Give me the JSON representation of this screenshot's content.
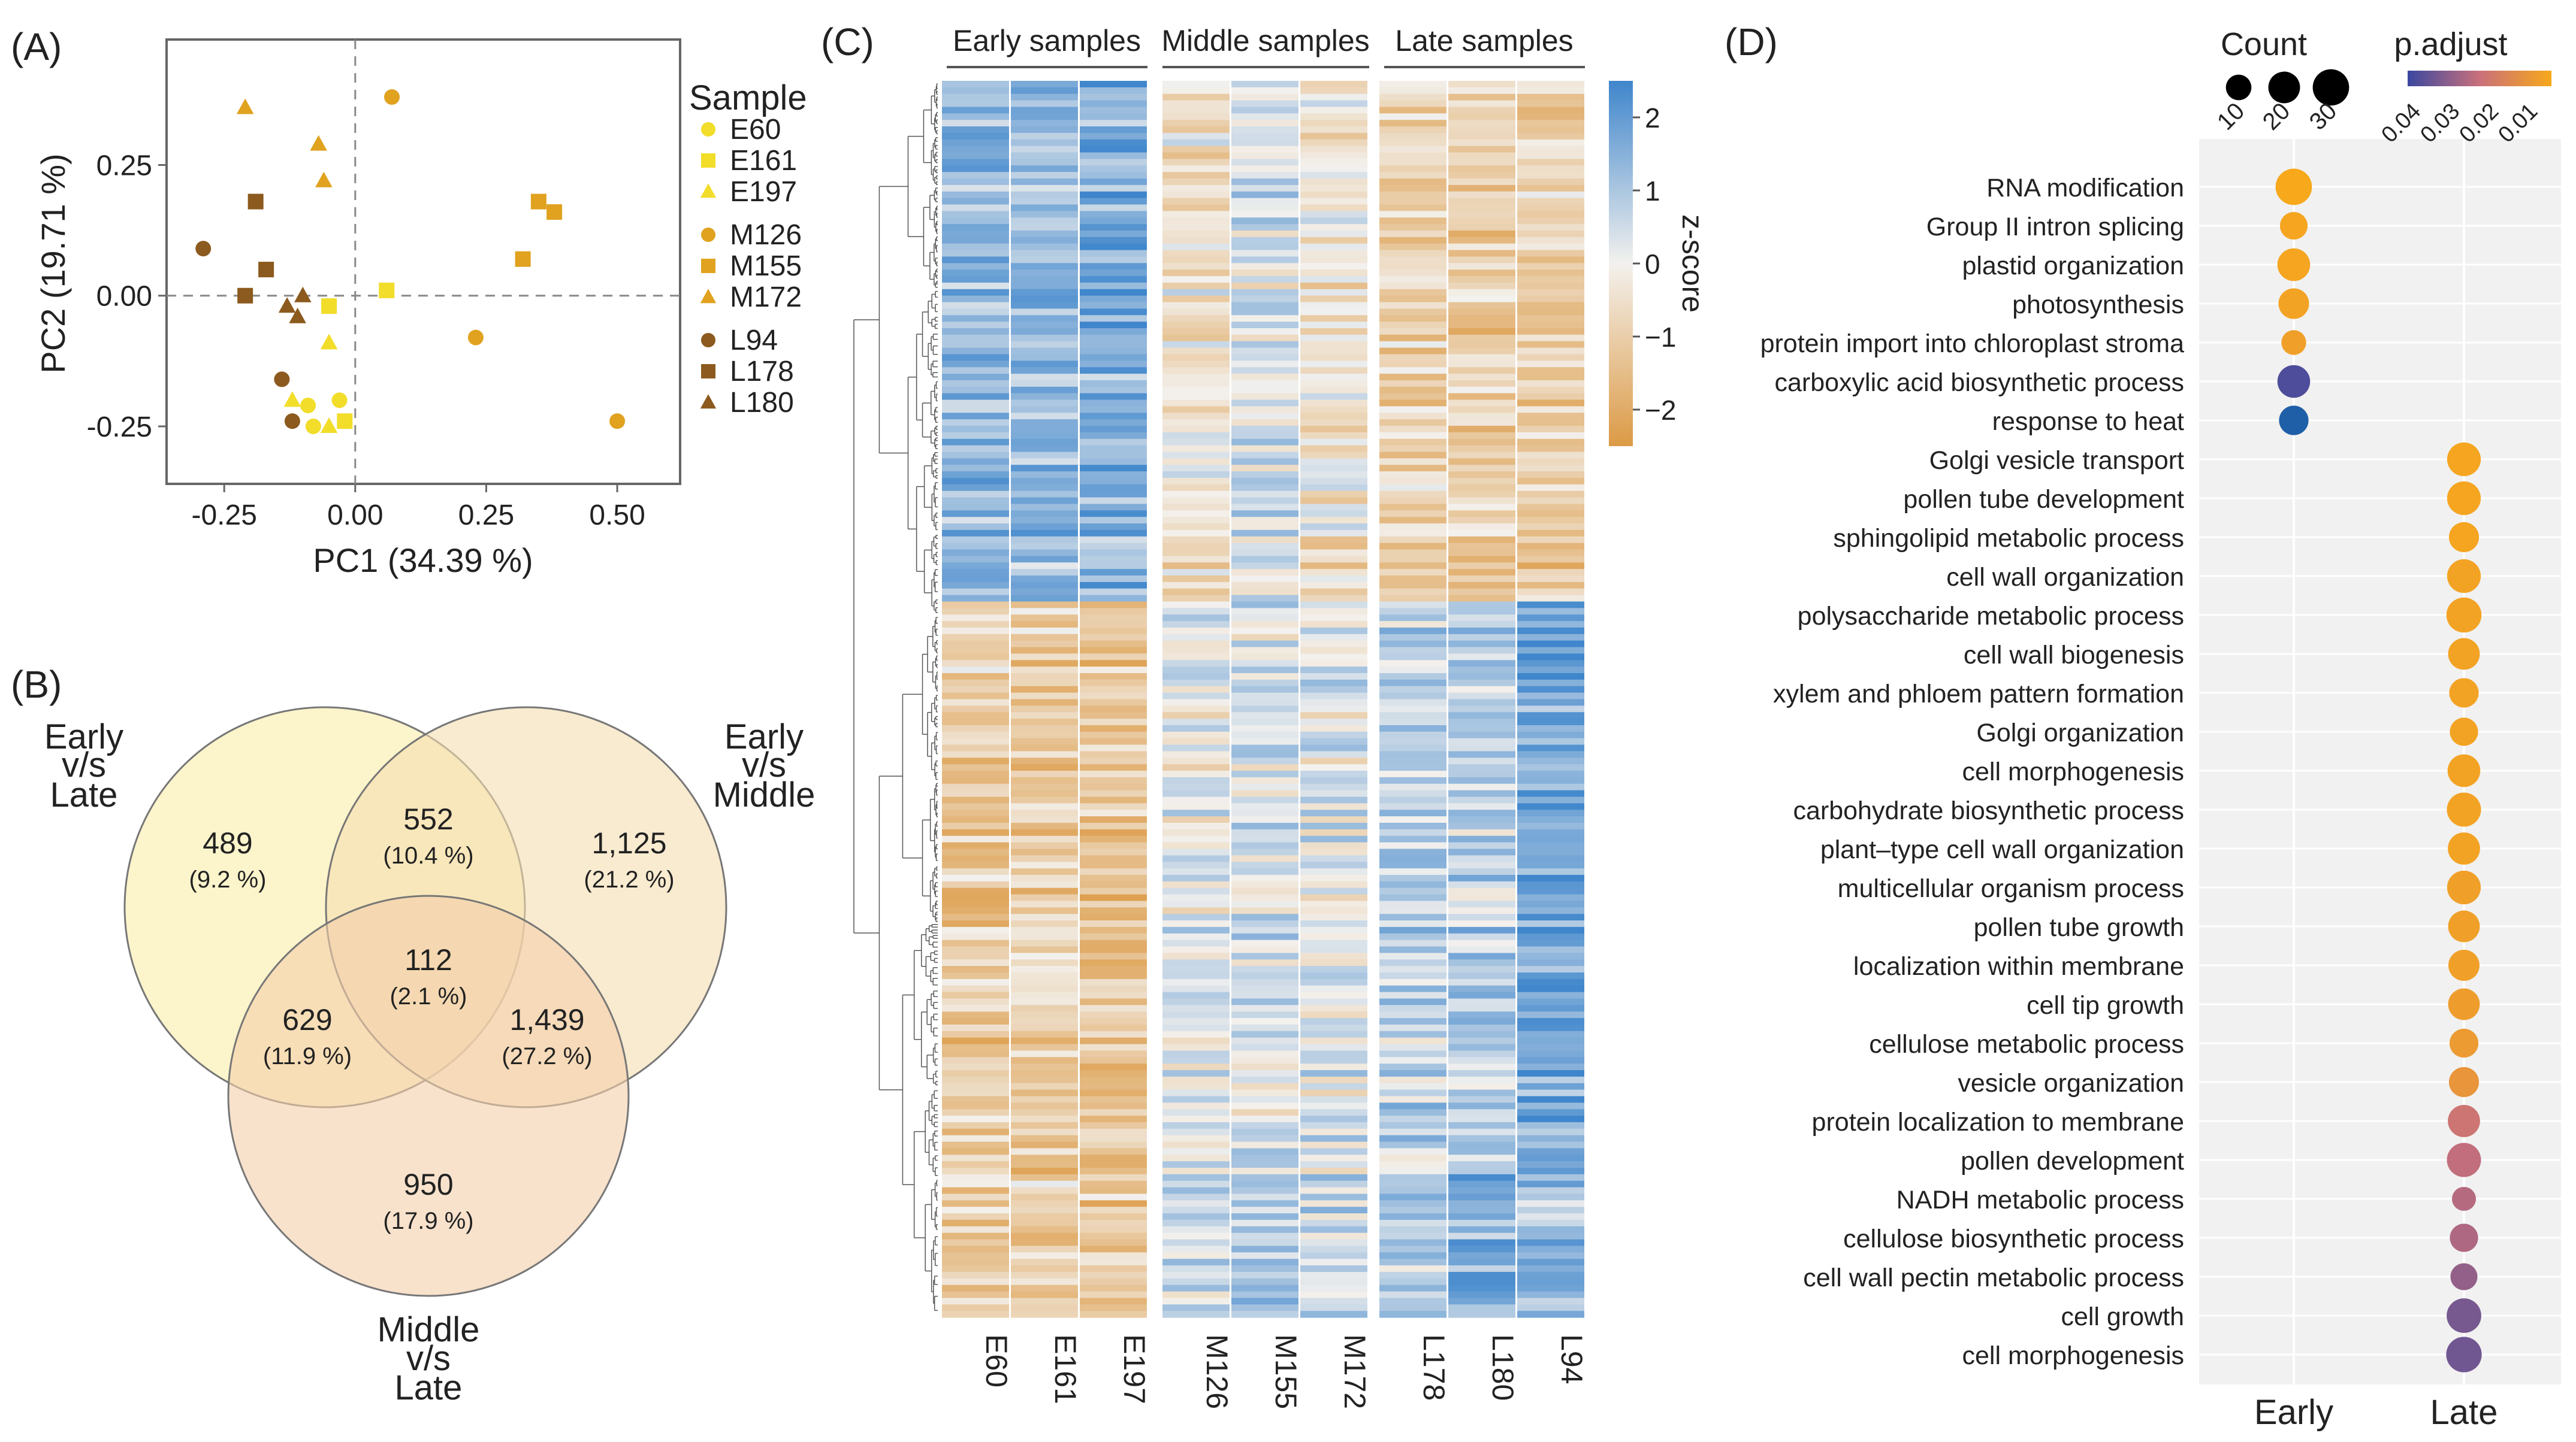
{
  "colors": {
    "gold": "#f5c400",
    "yellow": "#f2dd2a",
    "orange": "#e0a21f",
    "brown": "#8c5a1e",
    "frame": "#666666",
    "heat_blue": "#4d8fd1",
    "heat_orange": "#e3a45a",
    "heat_mid": "#f3f1ee",
    "venn_a": "#fbf2c2",
    "venn_b": "#f5ddb0",
    "venn_c": "#f3ceaa",
    "dot_low": "#3a47a0",
    "dot_high": "#f7a81b"
  },
  "panels": {
    "a": "(A)",
    "b": "(B)",
    "c": "(C)",
    "d": "(D)"
  },
  "chart_data": [
    {
      "type": "scatter",
      "id": "pca",
      "xlabel": "PC1 (34.39 %)",
      "ylabel": "PC2 (19.71 %)",
      "xlim": [
        -0.36,
        0.62
      ],
      "ylim": [
        -0.36,
        0.49
      ],
      "xticks": [
        "-0.25",
        "0.00",
        "0.25",
        "0.50"
      ],
      "xtick_values": [
        -0.25,
        0.0,
        0.25,
        0.5
      ],
      "yticks": [
        "0.25",
        "0.00",
        "-0.25"
      ],
      "ytick_values": [
        0.25,
        0.0,
        -0.25
      ],
      "legend_title": "Sample",
      "legend": [
        {
          "name": "E60",
          "shape": "circle",
          "color": "#f2dd2a"
        },
        {
          "name": "E161",
          "shape": "square",
          "color": "#f2dd2a"
        },
        {
          "name": "E197",
          "shape": "triangle",
          "color": "#f2dd2a"
        },
        {
          "name": "M126",
          "shape": "circle",
          "color": "#e0a21f"
        },
        {
          "name": "M155",
          "shape": "square",
          "color": "#e0a21f"
        },
        {
          "name": "M172",
          "shape": "triangle",
          "color": "#e0a21f"
        },
        {
          "name": "L94",
          "shape": "circle",
          "color": "#8c5a1e"
        },
        {
          "name": "L178",
          "shape": "square",
          "color": "#8c5a1e"
        },
        {
          "name": "L180",
          "shape": "triangle",
          "color": "#8c5a1e"
        }
      ],
      "points": [
        {
          "s": "E60",
          "x": -0.08,
          "y": -0.25
        },
        {
          "s": "E60",
          "x": -0.03,
          "y": -0.2
        },
        {
          "s": "E60",
          "x": -0.09,
          "y": -0.21
        },
        {
          "s": "E161",
          "x": 0.06,
          "y": 0.01
        },
        {
          "s": "E161",
          "x": -0.05,
          "y": -0.02
        },
        {
          "s": "E161",
          "x": -0.02,
          "y": -0.24
        },
        {
          "s": "E197",
          "x": -0.12,
          "y": -0.2
        },
        {
          "s": "E197",
          "x": -0.05,
          "y": -0.09
        },
        {
          "s": "E197",
          "x": -0.05,
          "y": -0.25
        },
        {
          "s": "M126",
          "x": 0.07,
          "y": 0.38
        },
        {
          "s": "M126",
          "x": 0.23,
          "y": -0.08
        },
        {
          "s": "M126",
          "x": 0.5,
          "y": -0.24
        },
        {
          "s": "M155",
          "x": 0.35,
          "y": 0.18
        },
        {
          "s": "M155",
          "x": 0.38,
          "y": 0.16
        },
        {
          "s": "M155",
          "x": 0.32,
          "y": 0.07
        },
        {
          "s": "M172",
          "x": -0.21,
          "y": 0.36
        },
        {
          "s": "M172",
          "x": -0.07,
          "y": 0.29
        },
        {
          "s": "M172",
          "x": -0.06,
          "y": 0.22
        },
        {
          "s": "L94",
          "x": -0.29,
          "y": 0.09
        },
        {
          "s": "L94",
          "x": -0.14,
          "y": -0.16
        },
        {
          "s": "L94",
          "x": -0.12,
          "y": -0.24
        },
        {
          "s": "L178",
          "x": -0.19,
          "y": 0.18
        },
        {
          "s": "L178",
          "x": -0.17,
          "y": 0.05
        },
        {
          "s": "L178",
          "x": -0.21,
          "y": 0.0
        },
        {
          "s": "L180",
          "x": -0.13,
          "y": -0.02
        },
        {
          "s": "L180",
          "x": -0.1,
          "y": 0.0
        },
        {
          "s": "L180",
          "x": -0.11,
          "y": -0.04
        }
      ]
    },
    {
      "type": "venn",
      "id": "venn",
      "sets": [
        {
          "label_lines": [
            "Early",
            "v/s",
            "Late"
          ]
        },
        {
          "label_lines": [
            "Early",
            "v/s",
            "Middle"
          ]
        },
        {
          "label_lines": [
            "Middle",
            "v/s",
            "Late"
          ]
        }
      ],
      "regions": [
        {
          "count": "489",
          "pct": "(9.2 %)"
        },
        {
          "count": "552",
          "pct": "(10.4 %)"
        },
        {
          "count": "1,125",
          "pct": "(21.2 %)"
        },
        {
          "count": "112",
          "pct": "(2.1 %)"
        },
        {
          "count": "629",
          "pct": "(11.9 %)"
        },
        {
          "count": "1,439",
          "pct": "(27.2 %)"
        },
        {
          "count": "950",
          "pct": "(17.9 %)"
        }
      ]
    },
    {
      "type": "heatmap",
      "id": "heatmap",
      "groups": [
        "Early samples",
        "Middle samples",
        "Late samples"
      ],
      "columns": [
        "E60",
        "E161",
        "E197",
        "M126",
        "M155",
        "M172",
        "L178",
        "L180",
        "L94"
      ],
      "n_rows": 190,
      "colorbar_title": "z-score",
      "colorbar_ticks": [
        "2",
        "1",
        "0",
        "−1",
        "−2"
      ],
      "colorbar_values": [
        2,
        1,
        0,
        -1,
        -2
      ],
      "value_range": [
        -2.5,
        2.5
      ],
      "row_blocks": [
        {
          "row_fraction": [
            0.0,
            0.42
          ],
          "means": [
            1.3,
            1.3,
            1.6,
            -0.4,
            0.3,
            -0.4,
            -0.9,
            -1.0,
            -1.0
          ]
        },
        {
          "row_fraction": [
            0.42,
            0.88
          ],
          "means": [
            -1.0,
            -1.0,
            -1.2,
            0.1,
            0.3,
            0.2,
            0.6,
            0.8,
            1.8
          ]
        },
        {
          "row_fraction": [
            0.88,
            1.0
          ],
          "means": [
            -1.0,
            -1.0,
            -1.1,
            0.6,
            0.9,
            0.6,
            0.8,
            1.5,
            1.3
          ]
        }
      ]
    },
    {
      "type": "dot",
      "id": "enrichment",
      "categories": [
        "Early",
        "Late"
      ],
      "size_legend_title": "Count",
      "size_legend": [
        10,
        20,
        30
      ],
      "color_legend_title": "p.adjust",
      "color_legend_ticks": [
        "0.04",
        "0.03",
        "0.02",
        "0.01"
      ],
      "color_legend_values": [
        0.04,
        0.03,
        0.02,
        0.01
      ],
      "terms": [
        {
          "term": "RNA modification",
          "group": "Early",
          "count": 30,
          "padj": 0.003
        },
        {
          "term": "Group II intron splicing",
          "group": "Early",
          "count": 13,
          "padj": 0.004
        },
        {
          "term": "plastid organization",
          "group": "Early",
          "count": 22,
          "padj": 0.004
        },
        {
          "term": "photosynthesis",
          "group": "Early",
          "count": 18,
          "padj": 0.005
        },
        {
          "term": "protein import into chloroplast stroma",
          "group": "Early",
          "count": 9,
          "padj": 0.006
        },
        {
          "term": "carboxylic acid biosynthetic process",
          "group": "Early",
          "count": 22,
          "padj": 0.042
        },
        {
          "term": "response to heat",
          "group": "Early",
          "count": 16,
          "padj": 0.046
        },
        {
          "term": "Golgi vesicle transport",
          "group": "Late",
          "count": 24,
          "padj": 0.004
        },
        {
          "term": "pollen tube development",
          "group": "Late",
          "count": 24,
          "padj": 0.004
        },
        {
          "term": "sphingolipid metabolic process",
          "group": "Late",
          "count": 17,
          "padj": 0.004
        },
        {
          "term": "cell wall organization",
          "group": "Late",
          "count": 24,
          "padj": 0.005
        },
        {
          "term": "polysaccharide metabolic process",
          "group": "Late",
          "count": 27,
          "padj": 0.005
        },
        {
          "term": "cell wall biogenesis",
          "group": "Late",
          "count": 20,
          "padj": 0.005
        },
        {
          "term": "xylem and phloem pattern formation",
          "group": "Late",
          "count": 16,
          "padj": 0.005
        },
        {
          "term": "Golgi organization",
          "group": "Late",
          "count": 14,
          "padj": 0.005
        },
        {
          "term": "cell morphogenesis",
          "group": "Late",
          "count": 22,
          "padj": 0.005
        },
        {
          "term": "carbohydrate biosynthetic process",
          "group": "Late",
          "count": 25,
          "padj": 0.005
        },
        {
          "term": "plant–type cell wall organization",
          "group": "Late",
          "count": 21,
          "padj": 0.005
        },
        {
          "term": "multicellular organism process",
          "group": "Late",
          "count": 24,
          "padj": 0.006
        },
        {
          "term": "pollen tube growth",
          "group": "Late",
          "count": 20,
          "padj": 0.006
        },
        {
          "term": "localization within membrane",
          "group": "Late",
          "count": 19,
          "padj": 0.006
        },
        {
          "term": "cell tip growth",
          "group": "Late",
          "count": 20,
          "padj": 0.007
        },
        {
          "term": "cellulose metabolic process",
          "group": "Late",
          "count": 15,
          "padj": 0.008
        },
        {
          "term": "vesicle organization",
          "group": "Late",
          "count": 17,
          "padj": 0.01
        },
        {
          "term": "protein localization to membrane",
          "group": "Late",
          "count": 21,
          "padj": 0.022
        },
        {
          "term": "pollen development",
          "group": "Late",
          "count": 25,
          "padj": 0.025
        },
        {
          "term": "NADH metabolic process",
          "group": "Late",
          "count": 8,
          "padj": 0.027
        },
        {
          "term": "cellulose biosynthetic process",
          "group": "Late",
          "count": 14,
          "padj": 0.028
        },
        {
          "term": "cell wall pectin metabolic process",
          "group": "Late",
          "count": 12,
          "padj": 0.032
        },
        {
          "term": "cell growth",
          "group": "Late",
          "count": 26,
          "padj": 0.036
        },
        {
          "term": "cell morphogenesis",
          "group": "Late",
          "count": 28,
          "padj": 0.037
        }
      ]
    }
  ]
}
